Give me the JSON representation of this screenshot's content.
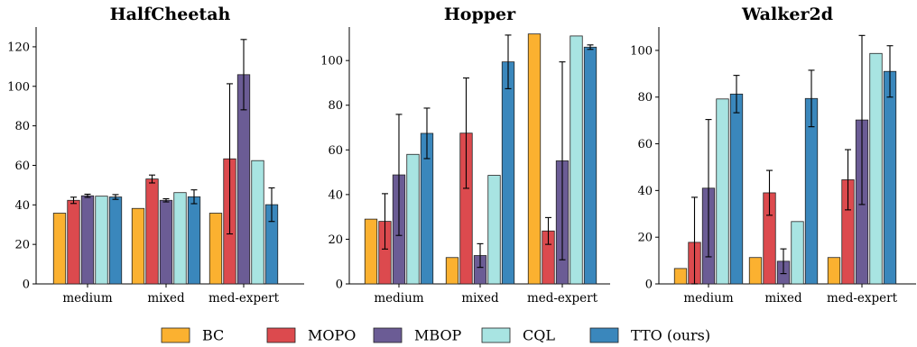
{
  "legend": [
    {
      "name": "BC",
      "color": "#FBB130"
    },
    {
      "name": "MOPO",
      "color": "#DC4A4E"
    },
    {
      "name": "MBOP",
      "color": "#6B5C95"
    },
    {
      "name": "CQL",
      "color": "#A8E4E2"
    },
    {
      "name": "TTO (ours)",
      "color": "#3A87BC"
    }
  ],
  "chart_data": [
    {
      "type": "bar",
      "title": "HalfCheetah",
      "categories": [
        "medium",
        "mixed",
        "med-expert"
      ],
      "ylim": [
        0,
        130
      ],
      "yticks": [
        0,
        20,
        40,
        60,
        80,
        100,
        120
      ],
      "series": [
        {
          "name": "BC",
          "values": [
            35.8,
            38.2,
            35.8
          ],
          "errors": [
            null,
            null,
            null
          ]
        },
        {
          "name": "MOPO",
          "values": [
            42.3,
            53.1,
            63.3
          ],
          "errors": [
            1.6,
            2.0,
            38.0
          ]
        },
        {
          "name": "MBOP",
          "values": [
            44.6,
            42.3,
            105.9
          ],
          "errors": [
            0.8,
            0.8,
            17.8
          ]
        },
        {
          "name": "CQL",
          "values": [
            44.4,
            46.2,
            62.4
          ],
          "errors": [
            null,
            null,
            null
          ]
        },
        {
          "name": "TTO (ours)",
          "values": [
            44.0,
            44.1,
            40.1
          ],
          "errors": [
            1.2,
            3.5,
            8.5
          ]
        }
      ]
    },
    {
      "type": "bar",
      "title": "Hopper",
      "categories": [
        "medium",
        "mixed",
        "med-expert"
      ],
      "ylim": [
        0,
        115
      ],
      "yticks": [
        0,
        20,
        40,
        60,
        80,
        100
      ],
      "series": [
        {
          "name": "BC",
          "values": [
            29.0,
            11.8,
            111.9
          ],
          "errors": [
            null,
            null,
            null
          ]
        },
        {
          "name": "MOPO",
          "values": [
            28.0,
            67.5,
            23.7
          ],
          "errors": [
            12.4,
            24.7,
            6.0
          ]
        },
        {
          "name": "MBOP",
          "values": [
            48.8,
            12.7,
            55.1
          ],
          "errors": [
            27.1,
            5.3,
            44.3
          ]
        },
        {
          "name": "CQL",
          "values": [
            58.0,
            48.6,
            111.0
          ],
          "errors": [
            null,
            null,
            null
          ]
        },
        {
          "name": "TTO (ours)",
          "values": [
            67.4,
            99.4,
            106.0
          ],
          "errors": [
            11.3,
            12.0,
            1.0
          ]
        }
      ]
    },
    {
      "type": "bar",
      "title": "Walker2d",
      "categories": [
        "medium",
        "mixed",
        "med-expert"
      ],
      "ylim": [
        0,
        110
      ],
      "yticks": [
        0,
        20,
        40,
        60,
        80,
        100
      ],
      "series": [
        {
          "name": "BC",
          "values": [
            6.6,
            11.3,
            11.3
          ],
          "errors": [
            null,
            null,
            null
          ]
        },
        {
          "name": "MOPO",
          "values": [
            17.8,
            39.0,
            44.6
          ],
          "errors": [
            19.3,
            9.6,
            12.9
          ]
        },
        {
          "name": "MBOP",
          "values": [
            41.0,
            9.7,
            70.2
          ],
          "errors": [
            29.4,
            5.3,
            36.2
          ]
        },
        {
          "name": "CQL",
          "values": [
            79.2,
            26.7,
            98.7
          ],
          "errors": [
            null,
            null,
            null
          ]
        },
        {
          "name": "TTO (ours)",
          "values": [
            81.3,
            79.4,
            91.0
          ],
          "errors": [
            8.0,
            12.1,
            11.0
          ]
        }
      ]
    }
  ]
}
